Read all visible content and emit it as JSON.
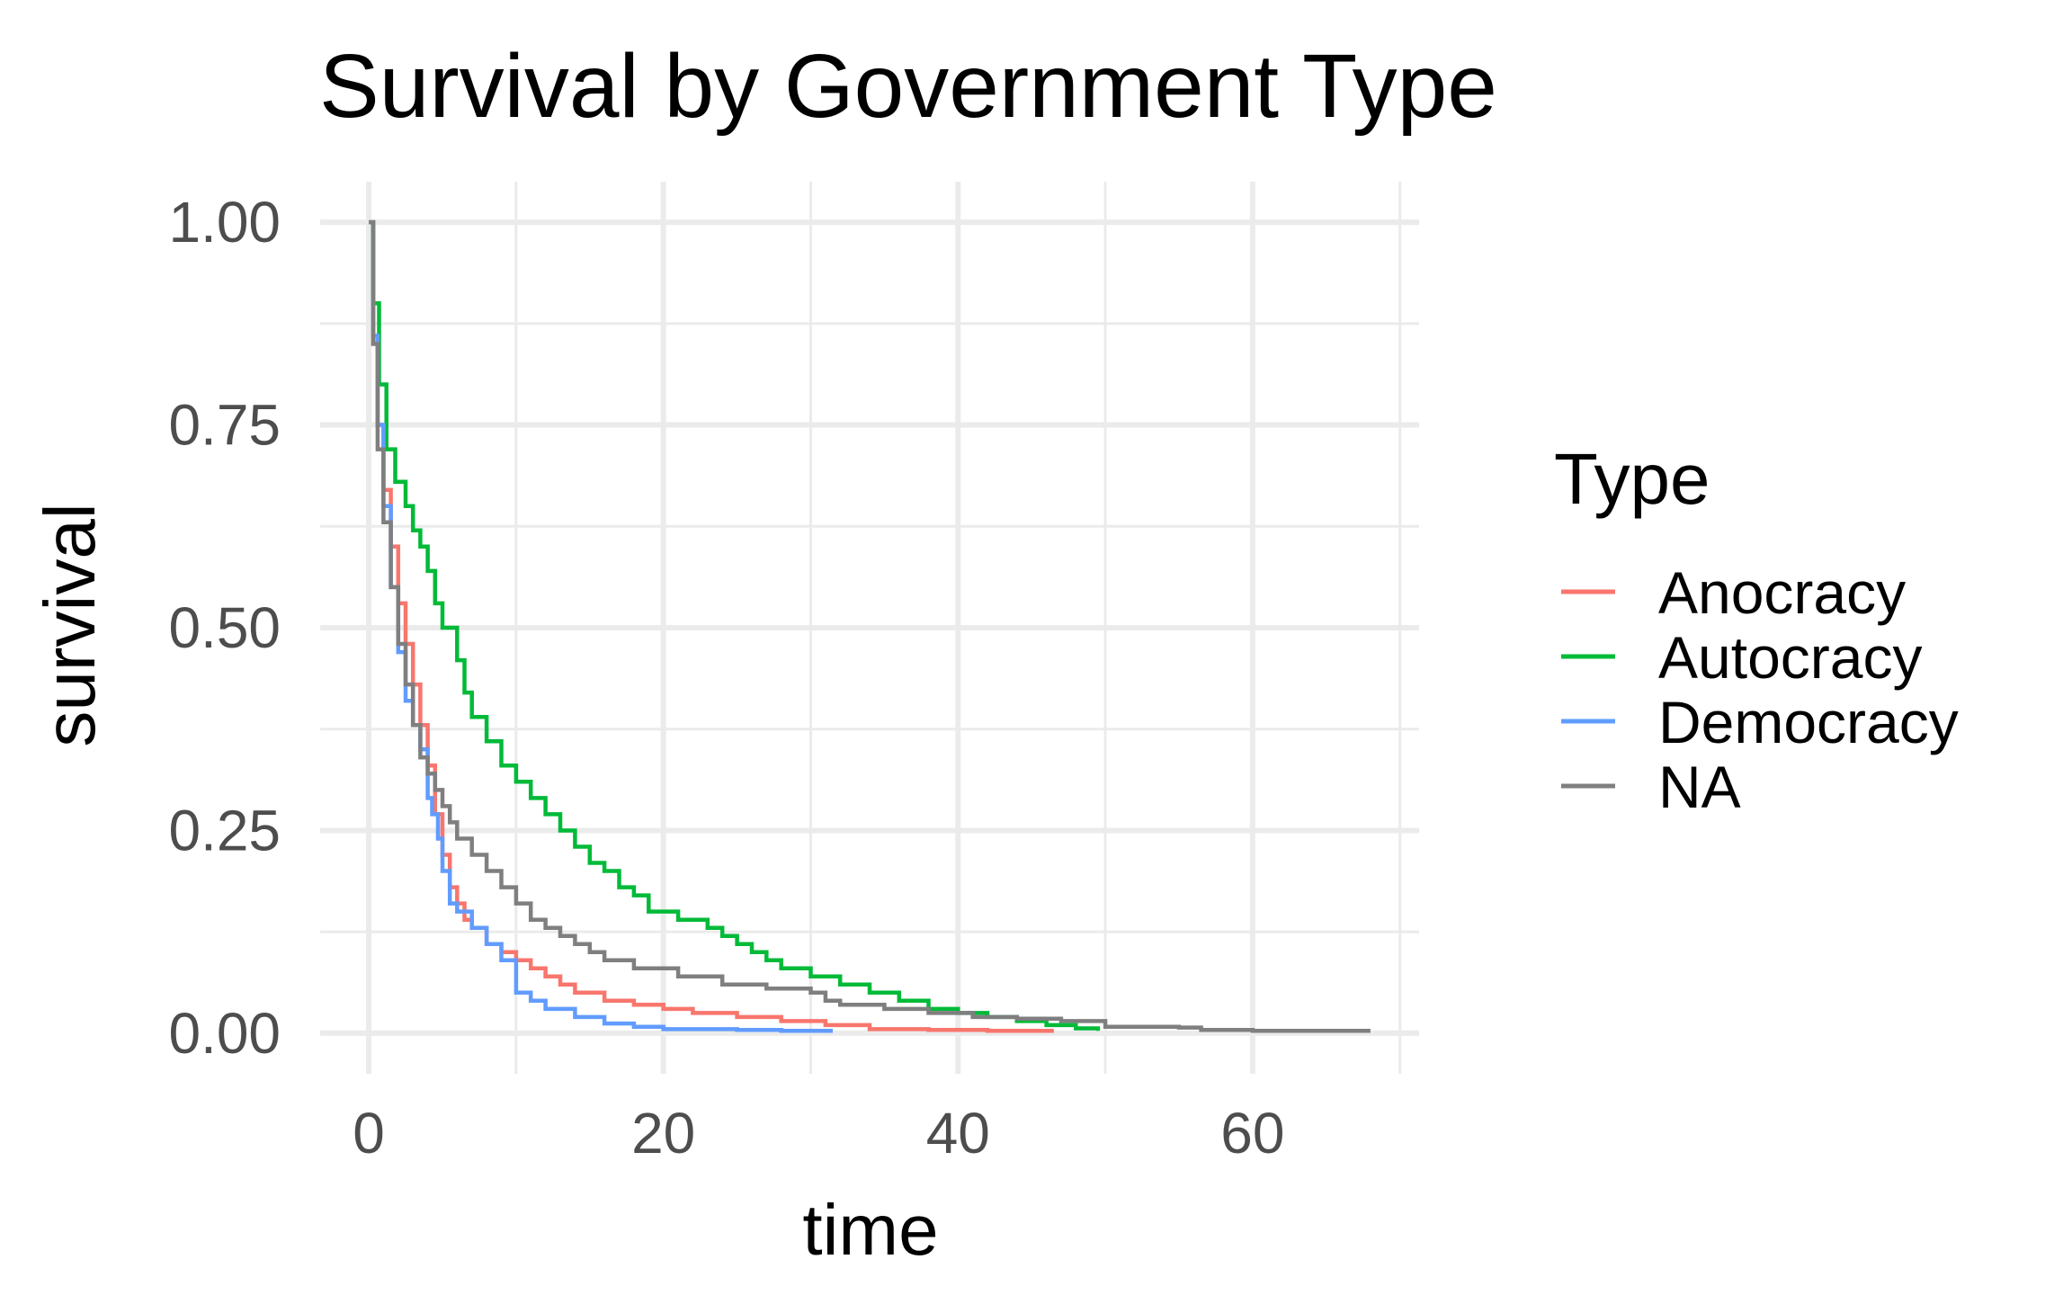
{
  "chart_data": {
    "type": "line",
    "title": "Survival by Government Type",
    "xlabel": "time",
    "ylabel": "survival",
    "xlim": [
      -3.3,
      71.3
    ],
    "ylim": [
      -0.05,
      1.05
    ],
    "x_ticks": [
      0,
      20,
      40,
      60
    ],
    "x_tick_labels": [
      "0",
      "20",
      "40",
      "60"
    ],
    "y_ticks": [
      0,
      0.25,
      0.5,
      0.75,
      1.0
    ],
    "y_tick_labels": [
      "0.00",
      "0.25",
      "0.50",
      "0.75",
      "1.00"
    ],
    "x_minor_ticks": [
      10,
      30,
      50,
      70
    ],
    "y_minor_ticks": [
      0.125,
      0.375,
      0.625,
      0.875
    ],
    "grid": true,
    "legend": {
      "title": "Type",
      "position": "right"
    },
    "series": [
      {
        "name": "Anocracy",
        "color": "#F8766D",
        "step": true,
        "points": [
          [
            0,
            1.0
          ],
          [
            0.3,
            0.85
          ],
          [
            0.6,
            0.75
          ],
          [
            1.0,
            0.67
          ],
          [
            1.5,
            0.6
          ],
          [
            2,
            0.53
          ],
          [
            2.5,
            0.48
          ],
          [
            3,
            0.43
          ],
          [
            3.5,
            0.38
          ],
          [
            4,
            0.33
          ],
          [
            4.5,
            0.27
          ],
          [
            5,
            0.22
          ],
          [
            5.5,
            0.18
          ],
          [
            6,
            0.16
          ],
          [
            6.5,
            0.14
          ],
          [
            7,
            0.13
          ],
          [
            8,
            0.11
          ],
          [
            9,
            0.1
          ],
          [
            10,
            0.09
          ],
          [
            11,
            0.08
          ],
          [
            12,
            0.07
          ],
          [
            13,
            0.06
          ],
          [
            14,
            0.05
          ],
          [
            16,
            0.04
          ],
          [
            18,
            0.035
          ],
          [
            20,
            0.03
          ],
          [
            22,
            0.025
          ],
          [
            25,
            0.02
          ],
          [
            28,
            0.015
          ],
          [
            31,
            0.01
          ],
          [
            34,
            0.005
          ],
          [
            38,
            0.004
          ],
          [
            42,
            0.003
          ],
          [
            46.5,
            0.003
          ]
        ]
      },
      {
        "name": "Autocracy",
        "color": "#00BA38",
        "step": true,
        "points": [
          [
            0,
            1.0
          ],
          [
            0.3,
            0.9
          ],
          [
            0.7,
            0.8
          ],
          [
            1.2,
            0.72
          ],
          [
            1.8,
            0.68
          ],
          [
            2.5,
            0.65
          ],
          [
            3,
            0.62
          ],
          [
            3.5,
            0.6
          ],
          [
            4,
            0.57
          ],
          [
            4.5,
            0.53
          ],
          [
            5,
            0.5
          ],
          [
            6,
            0.46
          ],
          [
            6.5,
            0.42
          ],
          [
            7,
            0.39
          ],
          [
            8,
            0.36
          ],
          [
            9,
            0.33
          ],
          [
            10,
            0.31
          ],
          [
            11,
            0.29
          ],
          [
            12,
            0.27
          ],
          [
            13,
            0.25
          ],
          [
            14,
            0.23
          ],
          [
            15,
            0.21
          ],
          [
            16,
            0.2
          ],
          [
            17,
            0.18
          ],
          [
            18,
            0.17
          ],
          [
            19,
            0.15
          ],
          [
            21,
            0.14
          ],
          [
            23,
            0.13
          ],
          [
            24,
            0.12
          ],
          [
            25,
            0.11
          ],
          [
            26,
            0.1
          ],
          [
            27,
            0.09
          ],
          [
            28,
            0.08
          ],
          [
            30,
            0.07
          ],
          [
            32,
            0.06
          ],
          [
            34,
            0.05
          ],
          [
            36,
            0.04
          ],
          [
            38,
            0.03
          ],
          [
            40,
            0.025
          ],
          [
            42,
            0.02
          ],
          [
            44,
            0.015
          ],
          [
            46,
            0.01
          ],
          [
            48,
            0.006
          ],
          [
            49.5,
            0.003
          ]
        ]
      },
      {
        "name": "Democracy",
        "color": "#619CFF",
        "step": true,
        "points": [
          [
            0,
            1.0
          ],
          [
            0.3,
            0.86
          ],
          [
            0.6,
            0.75
          ],
          [
            1.0,
            0.65
          ],
          [
            1.5,
            0.55
          ],
          [
            2,
            0.47
          ],
          [
            2.5,
            0.41
          ],
          [
            3,
            0.38
          ],
          [
            3.5,
            0.35
          ],
          [
            4,
            0.29
          ],
          [
            4.3,
            0.27
          ],
          [
            4.7,
            0.24
          ],
          [
            5,
            0.2
          ],
          [
            5.5,
            0.16
          ],
          [
            6,
            0.15
          ],
          [
            7,
            0.13
          ],
          [
            8,
            0.11
          ],
          [
            9,
            0.09
          ],
          [
            10,
            0.05
          ],
          [
            11,
            0.04
          ],
          [
            12,
            0.03
          ],
          [
            14,
            0.02
          ],
          [
            16,
            0.012
          ],
          [
            18,
            0.008
          ],
          [
            20,
            0.005
          ],
          [
            25,
            0.004
          ],
          [
            28,
            0.003
          ],
          [
            31.5,
            0.003
          ]
        ]
      },
      {
        "name": "NA",
        "color": "#7F7F7F",
        "step": true,
        "points": [
          [
            0,
            1.0
          ],
          [
            0.3,
            0.85
          ],
          [
            0.6,
            0.72
          ],
          [
            1.0,
            0.63
          ],
          [
            1.5,
            0.55
          ],
          [
            2,
            0.48
          ],
          [
            2.5,
            0.43
          ],
          [
            3,
            0.38
          ],
          [
            3.5,
            0.34
          ],
          [
            4,
            0.32
          ],
          [
            4.5,
            0.3
          ],
          [
            5,
            0.28
          ],
          [
            5.5,
            0.26
          ],
          [
            6,
            0.24
          ],
          [
            7,
            0.22
          ],
          [
            8,
            0.2
          ],
          [
            9,
            0.18
          ],
          [
            10,
            0.16
          ],
          [
            11,
            0.14
          ],
          [
            12,
            0.13
          ],
          [
            13,
            0.12
          ],
          [
            14,
            0.11
          ],
          [
            15,
            0.1
          ],
          [
            16,
            0.09
          ],
          [
            18,
            0.08
          ],
          [
            21,
            0.07
          ],
          [
            24,
            0.06
          ],
          [
            27,
            0.055
          ],
          [
            30,
            0.05
          ],
          [
            31,
            0.04
          ],
          [
            32,
            0.035
          ],
          [
            35,
            0.03
          ],
          [
            38,
            0.025
          ],
          [
            41,
            0.02
          ],
          [
            44,
            0.018
          ],
          [
            47,
            0.015
          ],
          [
            50,
            0.008
          ],
          [
            55,
            0.007
          ],
          [
            56.5,
            0.004
          ],
          [
            60,
            0.003
          ],
          [
            68,
            0.003
          ]
        ]
      }
    ]
  }
}
